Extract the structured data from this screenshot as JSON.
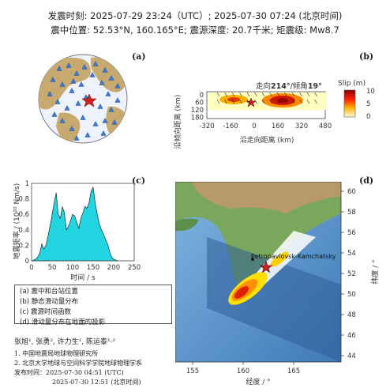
{
  "header": {
    "line1": "发震时刻: 2025-07-29 23:24（UTC）;   2025-07-30  07:24 (北京时间)",
    "line2": "震中位置: 52.53°N,  160.165°E;   震源深度: 20.7千米; 矩震级: Mw8.7"
  },
  "panels": {
    "a": "(a)",
    "b": "(b)",
    "c": "(c)",
    "d": "(d)"
  },
  "colors": {
    "land": "#c8aa70",
    "ocean": "#e9eef8",
    "station": "#3a7bd5",
    "epicenter": "#d02020",
    "moment_fill": "#22d4e0",
    "slip_high": "#b80000",
    "slip_low": "#ffffc0"
  },
  "panel_a": {
    "icons": [
      "station-triangle-icon",
      "epicenter-star-icon"
    ]
  },
  "panel_b": {
    "title_prefix": "走向",
    "strike": "214°",
    "title_mid": "/倾角",
    "dip": "19°",
    "ylabel": "沿倾向距离 (km)",
    "xlabel": "沿走向距离 (km)",
    "yticks": [
      "0",
      "60",
      "120",
      "180"
    ],
    "xticks": [
      "-320",
      "-160",
      "0",
      "160",
      "320",
      "480"
    ],
    "colorbar_title": "Slip (m)",
    "colorbar_ticks": [
      "10",
      "5",
      "0"
    ]
  },
  "chart_data": {
    "type": "area",
    "title": "",
    "xlabel": "时间 / s",
    "ylabel": "地震矩率 / (10²⁰ Nm/s)",
    "xlim": [
      0,
      250
    ],
    "ylim": [
      0,
      1
    ],
    "xticks": [
      0,
      50,
      100,
      150,
      200,
      250
    ],
    "yticks": [
      0,
      0.2,
      0.4,
      0.6,
      0.8,
      1
    ],
    "x": [
      0,
      5,
      10,
      15,
      20,
      25,
      30,
      35,
      40,
      45,
      50,
      55,
      60,
      65,
      70,
      75,
      80,
      85,
      90,
      95,
      100,
      105,
      110,
      115,
      120,
      125,
      130,
      135,
      140,
      145,
      150,
      155,
      160,
      165,
      170,
      175,
      180,
      185,
      190,
      195,
      200,
      210
    ],
    "y": [
      0,
      0.01,
      0.02,
      0.05,
      0.1,
      0.22,
      0.15,
      0.2,
      0.32,
      0.45,
      0.6,
      0.75,
      0.88,
      0.6,
      0.55,
      0.7,
      0.62,
      0.4,
      0.45,
      0.52,
      0.6,
      0.58,
      0.5,
      0.42,
      0.55,
      0.62,
      0.7,
      0.68,
      0.75,
      0.9,
      0.95,
      0.75,
      0.6,
      0.48,
      0.4,
      0.35,
      0.28,
      0.22,
      0.12,
      0.05,
      0.02,
      0
    ]
  },
  "panel_d": {
    "station_label": "Petropavlovsk-Kamchatsky",
    "ylabel": "纬度 / °",
    "xlabel": "经度 / °",
    "yticks": [
      "60",
      "58",
      "56",
      "54",
      "52",
      "50",
      "48",
      "46",
      "44"
    ],
    "xticks": [
      "155",
      "160",
      "165"
    ]
  },
  "legend": {
    "items": [
      "(a) 震中和台站位置",
      "(b) 静态滑动量分布",
      "(c) 震源时间函数",
      "(d) 滑动量分布在地面的投影"
    ]
  },
  "notes": {
    "authors": "张旭¹, 张勇², 许力生¹, 陈运泰¹·²",
    "affil1": "1. 中国地震局地球物理研究所",
    "affil2": "2. 北京大学地球与空间科学学院地球物理学系",
    "release_label": "发布时间：",
    "release_utc": "2025-07-30  04:51 (UTC)",
    "release_bj": "2025-07-30  12:51 (北京时间)"
  }
}
